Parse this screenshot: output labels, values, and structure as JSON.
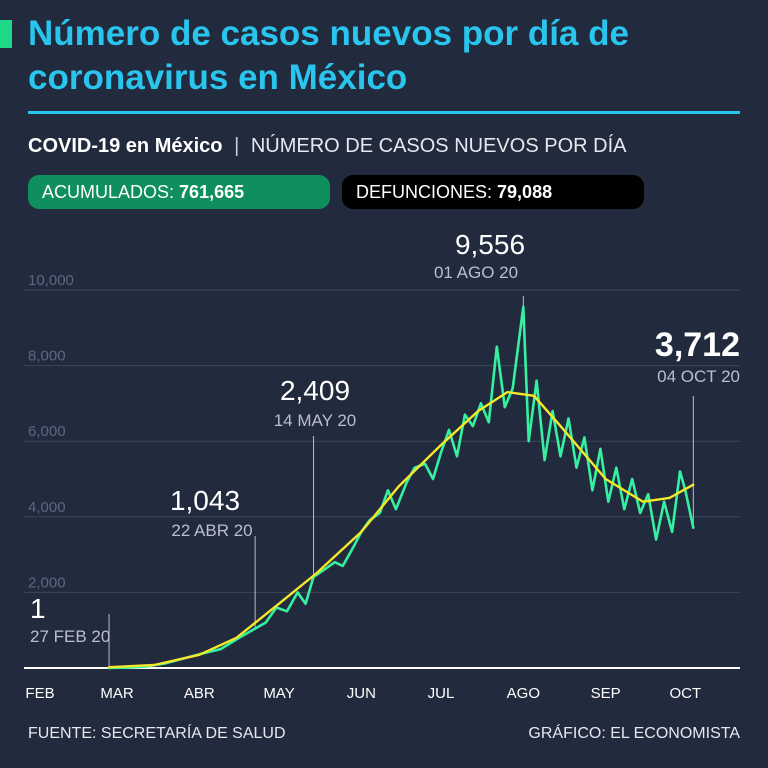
{
  "title": "Número de casos nuevos por día de coronavirus en México",
  "subtitle": {
    "bold": "COVID-19 en México",
    "separator": "|",
    "light": "NÚMERO DE CASOS NUEVOS POR DÍA"
  },
  "stats": {
    "acumulados_label": "ACUMULADOS:",
    "acumulados_value": "761,665",
    "defunciones_label": "DEFUNCIONES:",
    "defunciones_value": "79,088"
  },
  "colors": {
    "accent": "#29c5ee",
    "line": "#34f0a0",
    "trend": "#f5e82a",
    "badge_green": "#0f8f5e",
    "badge_black": "#000000",
    "background": "#222a3d"
  },
  "footer": {
    "source": "FUENTE: SECRETARÍA DE SALUD",
    "credit": "GRÁFICO: EL ECONOMISTA"
  },
  "chart_data": {
    "type": "line",
    "ylim": [
      0,
      10000
    ],
    "yticks": [
      {
        "value": 2000,
        "label": "2,000"
      },
      {
        "value": 4000,
        "label": "4,000"
      },
      {
        "value": 6000,
        "label": "6,000"
      },
      {
        "value": 8000,
        "label": "8,000"
      },
      {
        "value": 10000,
        "label": "10,000"
      }
    ],
    "xticks": [
      {
        "date": "2020-02-01",
        "label": "FEB"
      },
      {
        "date": "2020-03-01",
        "label": "MAR"
      },
      {
        "date": "2020-04-01",
        "label": "ABR"
      },
      {
        "date": "2020-05-01",
        "label": "MAY"
      },
      {
        "date": "2020-06-01",
        "label": "JUN"
      },
      {
        "date": "2020-07-01",
        "label": "JUL"
      },
      {
        "date": "2020-08-01",
        "label": "AGO"
      },
      {
        "date": "2020-09-01",
        "label": "SEP"
      },
      {
        "date": "2020-10-01",
        "label": "OCT"
      }
    ],
    "grid": true,
    "series": [
      {
        "style": "daily",
        "x": [
          "2020-02-27",
          "2020-03-05",
          "2020-03-12",
          "2020-03-19",
          "2020-03-26",
          "2020-04-02",
          "2020-04-09",
          "2020-04-16",
          "2020-04-22",
          "2020-04-26",
          "2020-04-30",
          "2020-05-04",
          "2020-05-08",
          "2020-05-11",
          "2020-05-14",
          "2020-05-18",
          "2020-05-22",
          "2020-05-25",
          "2020-05-29",
          "2020-06-01",
          "2020-06-04",
          "2020-06-08",
          "2020-06-11",
          "2020-06-14",
          "2020-06-18",
          "2020-06-21",
          "2020-06-25",
          "2020-06-28",
          "2020-07-01",
          "2020-07-04",
          "2020-07-07",
          "2020-07-10",
          "2020-07-13",
          "2020-07-16",
          "2020-07-19",
          "2020-07-22",
          "2020-07-25",
          "2020-07-28",
          "2020-08-01",
          "2020-08-03",
          "2020-08-06",
          "2020-08-09",
          "2020-08-12",
          "2020-08-15",
          "2020-08-18",
          "2020-08-21",
          "2020-08-24",
          "2020-08-27",
          "2020-08-30",
          "2020-09-02",
          "2020-09-05",
          "2020-09-08",
          "2020-09-11",
          "2020-09-14",
          "2020-09-17",
          "2020-09-20",
          "2020-09-23",
          "2020-09-26",
          "2020-09-29",
          "2020-10-01",
          "2020-10-04"
        ],
        "values": [
          1,
          10,
          40,
          120,
          250,
          380,
          500,
          800,
          1043,
          1200,
          1600,
          1500,
          2000,
          1700,
          2409,
          2600,
          2800,
          2700,
          3200,
          3600,
          3900,
          4100,
          4700,
          4200,
          4900,
          5300,
          5400,
          5000,
          5700,
          6300,
          5600,
          6700,
          6400,
          7000,
          6500,
          8500,
          6900,
          7400,
          9556,
          6000,
          7600,
          5500,
          6800,
          5600,
          6600,
          5300,
          6100,
          4700,
          5800,
          4400,
          5300,
          4200,
          5000,
          4100,
          4600,
          3400,
          4400,
          3600,
          5200,
          4700,
          3712
        ]
      },
      {
        "style": "trend",
        "x": [
          "2020-02-27",
          "2020-03-15",
          "2020-04-01",
          "2020-04-15",
          "2020-05-01",
          "2020-05-15",
          "2020-06-01",
          "2020-06-15",
          "2020-07-01",
          "2020-07-15",
          "2020-07-26",
          "2020-08-05",
          "2020-08-15",
          "2020-09-01",
          "2020-09-15",
          "2020-09-25",
          "2020-10-04"
        ],
        "values": [
          20,
          80,
          350,
          800,
          1700,
          2500,
          3600,
          4800,
          5900,
          6800,
          7300,
          7200,
          6400,
          5000,
          4400,
          4500,
          4850
        ]
      }
    ],
    "annotations": [
      {
        "value": "1",
        "date_label": "27 FEB 20",
        "x": "2020-02-27",
        "y": 1
      },
      {
        "value": "1,043",
        "date_label": "22 ABR 20",
        "x": "2020-04-22",
        "y": 1043
      },
      {
        "value": "2,409",
        "date_label": "14 MAY 20",
        "x": "2020-05-14",
        "y": 2409
      },
      {
        "value": "9,556",
        "date_label": "01 AGO 20",
        "x": "2020-08-01",
        "y": 9556
      },
      {
        "value": "3,712",
        "date_label": "04 OCT 20",
        "x": "2020-10-04",
        "y": 3712,
        "emphasis": true
      }
    ]
  }
}
